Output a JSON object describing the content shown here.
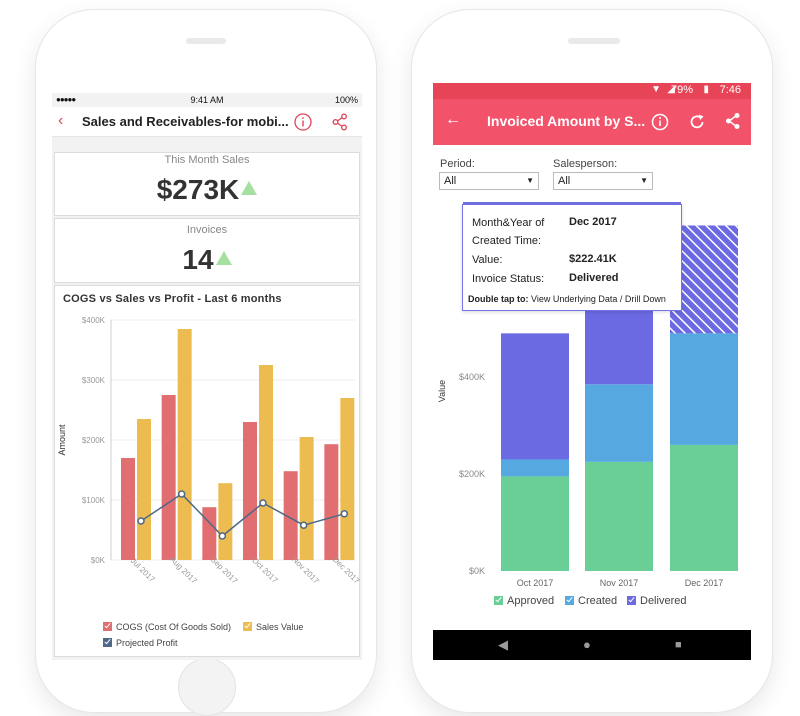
{
  "iphone": {
    "status": {
      "signal": "●●●●● ",
      "time": "9:41 AM",
      "battery": "100%"
    },
    "header": {
      "title": "Sales and Receivables-for mobi...",
      "info_icon": "info-icon",
      "share_icon": "share-icon",
      "back_icon": "chevron-left-icon"
    },
    "kpis": [
      {
        "label": "This Month Sales",
        "value": "$273K",
        "trend": "up"
      },
      {
        "label": "Invoices",
        "value": "14",
        "trend": "up"
      }
    ],
    "chart_title": "COGS vs Sales vs Profit - Last 6 months",
    "legend": [
      {
        "label": "COGS (Cost Of Goods Sold)",
        "color": "#e16f71"
      },
      {
        "label": "Sales Value",
        "color": "#edbc50"
      },
      {
        "label": "Projected Profit",
        "color": "#4e6887"
      }
    ]
  },
  "android": {
    "status": {
      "battery": "79%",
      "time": "7:46"
    },
    "header": {
      "title": "Invoiced Amount by S...",
      "back_icon": "arrow-left-icon",
      "info_icon": "info-icon",
      "refresh_icon": "refresh-icon",
      "share_icon": "share-icon"
    },
    "filters": [
      {
        "label": "Period:",
        "value": "All"
      },
      {
        "label": "Salesperson:",
        "value": "All"
      }
    ],
    "tooltip": {
      "rows": [
        {
          "key": "Month&Year of",
          "value": "Dec 2017"
        },
        {
          "key": "Created Time:",
          "value": ""
        },
        {
          "key": "Value:",
          "value": "$222.41K"
        },
        {
          "key": "Invoice Status:",
          "value": "Delivered"
        }
      ],
      "footer_bold": "Double tap to:",
      "footer_text": " View Underlying Data / Drill Down"
    },
    "legend": [
      {
        "label": "Approved",
        "color": "#69cf96"
      },
      {
        "label": "Created",
        "color": "#55a9e0"
      },
      {
        "label": "Delivered",
        "color": "#6b6ae3"
      }
    ],
    "nav": {
      "back": "◀",
      "home": "●",
      "recents": "■"
    }
  },
  "chart_data": [
    {
      "type": "bar",
      "title": "COGS vs Sales vs Profit - Last 6 months",
      "ylabel": "Amount",
      "ylim": [
        0,
        400000
      ],
      "yticks": [
        "$0K",
        "$100K",
        "$200K",
        "$300K",
        "$400K"
      ],
      "categories": [
        "Jul 2017",
        "Aug 2017",
        "Sep 2017",
        "Oct 2017",
        "Nov 2017",
        "Dec 2017"
      ],
      "series": [
        {
          "name": "COGS (Cost Of Goods Sold)",
          "type": "bar",
          "color": "#e16f71",
          "values": [
            170000,
            275000,
            88000,
            230000,
            148000,
            193000
          ]
        },
        {
          "name": "Sales Value",
          "type": "bar",
          "color": "#edbc50",
          "values": [
            235000,
            385000,
            128000,
            325000,
            205000,
            270000
          ]
        },
        {
          "name": "Projected Profit",
          "type": "line",
          "color": "#4e6887",
          "values": [
            65000,
            110000,
            40000,
            95000,
            58000,
            77000
          ]
        }
      ]
    },
    {
      "type": "bar",
      "stacked": true,
      "ylabel": "Value",
      "yticks": [
        "$0K",
        "$200K",
        "$400K"
      ],
      "categories": [
        "Oct 2017",
        "Nov 2017",
        "Dec 2017"
      ],
      "series": [
        {
          "name": "Approved",
          "color": "#69cf96",
          "values": [
            195000,
            225000,
            260000
          ]
        },
        {
          "name": "Created",
          "color": "#55a9e0",
          "values": [
            35000,
            160000,
            230000
          ]
        },
        {
          "name": "Delivered",
          "color": "#6b6ae3",
          "values": [
            260000,
            270000,
            222410
          ]
        }
      ]
    }
  ]
}
